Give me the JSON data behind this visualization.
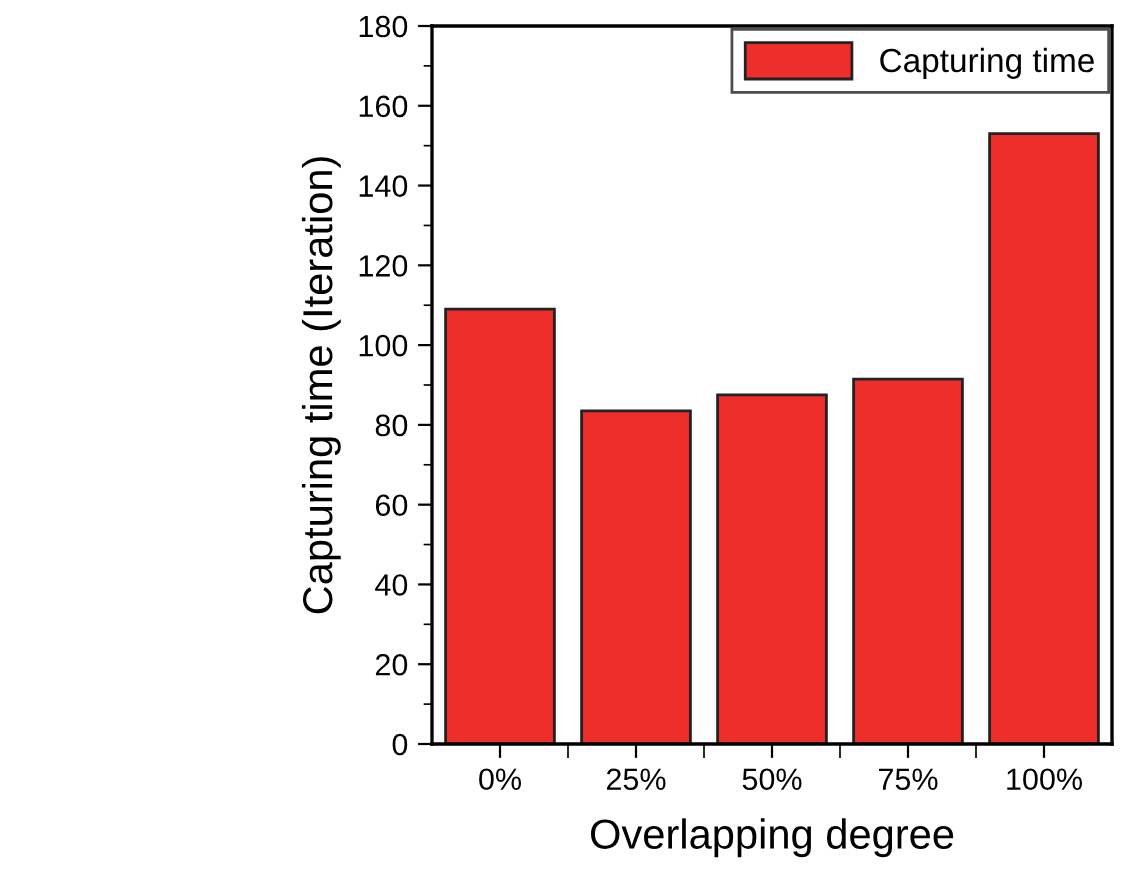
{
  "chart_data": {
    "type": "bar",
    "xlabel": "Overlapping degree",
    "ylabel": "Capturing time (Iteration)",
    "categories": [
      "0%",
      "25%",
      "50%",
      "75%",
      "100%"
    ],
    "series": [
      {
        "name": "Capturing time",
        "color": "#ee2e2a",
        "values": [
          109,
          83.5,
          87.5,
          91.5,
          153
        ]
      }
    ],
    "ylim": [
      0,
      180
    ],
    "yticks": [
      0,
      20,
      40,
      60,
      80,
      100,
      120,
      140,
      160,
      180
    ],
    "grid": false,
    "legend": "top right"
  }
}
